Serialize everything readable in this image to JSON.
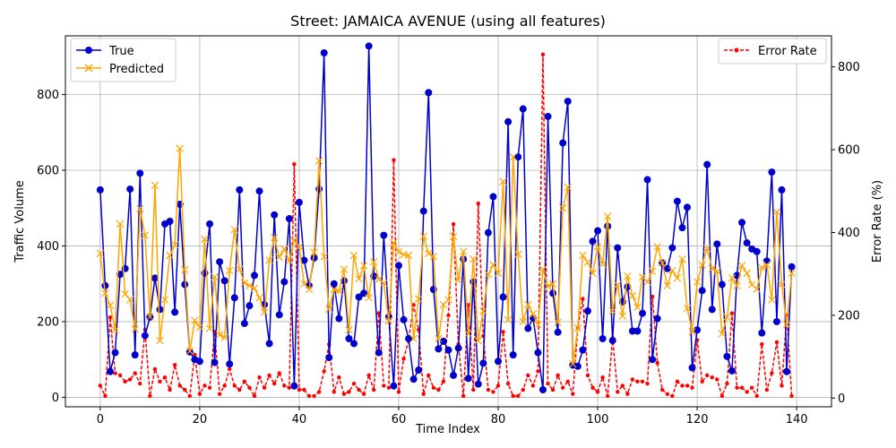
{
  "chart_data": {
    "type": "line",
    "title": "Street: JAMAICA AVENUE (using all features)",
    "xlabel": "Time Index",
    "ylabel": "Traffic Volume",
    "y2label": "Error Rate (%)",
    "xlim": [
      -7,
      147
    ],
    "ylim": [
      -25,
      955
    ],
    "y2lim": [
      -21,
      875
    ],
    "xticks": [
      "0",
      "20",
      "40",
      "60",
      "80",
      "100",
      "120",
      "140"
    ],
    "yticks": [
      "0",
      "200",
      "400",
      "600",
      "800"
    ],
    "y2ticks": [
      "0",
      "200",
      "400",
      "600",
      "800"
    ],
    "grid": true,
    "legend_left": "upper-left",
    "legend_right": "upper-right",
    "colors": {
      "true": "#0000cc",
      "predicted": "#ffa500",
      "error": "#ff0000"
    },
    "x": [
      0,
      1,
      2,
      3,
      4,
      5,
      6,
      7,
      8,
      9,
      10,
      11,
      12,
      13,
      14,
      15,
      16,
      17,
      18,
      19,
      20,
      21,
      22,
      23,
      24,
      25,
      26,
      27,
      28,
      29,
      30,
      31,
      32,
      33,
      34,
      35,
      36,
      37,
      38,
      39,
      40,
      41,
      42,
      43,
      44,
      45,
      46,
      47,
      48,
      49,
      50,
      51,
      52,
      53,
      54,
      55,
      56,
      57,
      58,
      59,
      60,
      61,
      62,
      63,
      64,
      65,
      66,
      67,
      68,
      69,
      70,
      71,
      72,
      73,
      74,
      75,
      76,
      77,
      78,
      79,
      80,
      81,
      82,
      83,
      84,
      85,
      86,
      87,
      88,
      89,
      90,
      91,
      92,
      93,
      94,
      95,
      96,
      97,
      98,
      99,
      100,
      101,
      102,
      103,
      104,
      105,
      106,
      107,
      108,
      109,
      110,
      111,
      112,
      113,
      114,
      115,
      116,
      117,
      118,
      119,
      120,
      121,
      122,
      123,
      124,
      125,
      126,
      127,
      128,
      129,
      130,
      131,
      132,
      133,
      134,
      135,
      136,
      137,
      138,
      139
    ],
    "series": [
      {
        "name": "True",
        "key": "true",
        "axis": "left",
        "marker": "circle",
        "values": [
          548,
          295,
          68,
          118,
          325,
          340,
          550,
          112,
          592,
          163,
          212,
          315,
          232,
          458,
          465,
          225,
          510,
          298,
          120,
          100,
          95,
          328,
          458,
          92,
          358,
          308,
          88,
          263,
          548,
          195,
          242,
          322,
          545,
          245,
          142,
          482,
          218,
          305,
          472,
          30,
          515,
          362,
          295,
          368,
          550,
          910,
          105,
          300,
          208,
          308,
          155,
          142,
          265,
          275,
          928,
          320,
          118,
          428,
          212,
          30,
          348,
          205,
          155,
          48,
          72,
          492,
          805,
          285,
          128,
          148,
          125,
          58,
          130,
          365,
          50,
          305,
          35,
          90,
          435,
          530,
          95,
          265,
          728,
          112,
          635,
          762,
          182,
          210,
          118,
          20,
          742,
          275,
          172,
          672,
          782,
          85,
          82,
          125,
          228,
          412,
          440,
          155,
          452,
          150,
          395,
          252,
          292,
          175,
          175,
          222,
          575,
          100,
          208,
          355,
          340,
          395,
          518,
          448,
          502,
          78,
          178,
          282,
          615,
          232,
          405,
          298,
          108,
          70,
          322,
          462,
          408,
          392,
          385,
          170,
          360,
          595,
          200,
          548,
          68,
          345
        ]
      },
      {
        "name": "Predicted",
        "key": "predicted",
        "axis": "left",
        "marker": "x",
        "values": [
          380,
          275,
          243,
          178,
          458,
          273,
          258,
          180,
          498,
          428,
          213,
          560,
          150,
          258,
          375,
          403,
          657,
          337,
          122,
          203,
          185,
          418,
          182,
          318,
          165,
          158,
          335,
          443,
          338,
          302,
          295,
          288,
          263,
          225,
          362,
          422,
          370,
          392,
          360,
          415,
          398,
          300,
          285,
          383,
          625,
          372,
          233,
          285,
          280,
          338,
          178,
          375,
          313,
          348,
          263,
          358,
          312,
          302,
          202,
          408,
          385,
          377,
          375,
          155,
          260,
          425,
          380,
          372,
          155,
          245,
          258,
          425,
          310,
          385,
          168,
          365,
          150,
          228,
          325,
          350,
          328,
          570,
          205,
          635,
          378,
          200,
          245,
          220,
          192,
          338,
          293,
          300,
          198,
          500,
          555,
          88,
          183,
          375,
          357,
          328,
          398,
          352,
          478,
          228,
          298,
          215,
          320,
          268,
          238,
          318,
          305,
          333,
          398,
          355,
          295,
          335,
          315,
          365,
          235,
          173,
          305,
          350,
          393,
          340,
          333,
          168,
          212,
          315,
          295,
          348,
          328,
          298,
          286,
          343,
          350,
          258,
          490,
          298,
          192,
          328
        ]
      },
      {
        "name": "Error Rate",
        "key": "error",
        "axis": "right",
        "marker": "dot",
        "values": [
          30,
          5,
          195,
          60,
          55,
          40,
          45,
          60,
          35,
          165,
          5,
          70,
          40,
          50,
          20,
          80,
          30,
          20,
          5,
          105,
          10,
          30,
          25,
          160,
          10,
          30,
          70,
          30,
          20,
          40,
          25,
          5,
          50,
          25,
          55,
          35,
          60,
          30,
          25,
          565,
          20,
          20,
          5,
          5,
          15,
          65,
          130,
          15,
          50,
          10,
          15,
          35,
          20,
          10,
          55,
          20,
          205,
          30,
          25,
          575,
          15,
          95,
          140,
          225,
          165,
          10,
          55,
          25,
          20,
          40,
          200,
          420,
          130,
          5,
          225,
          20,
          470,
          150,
          20,
          15,
          30,
          160,
          35,
          5,
          5,
          20,
          55,
          30,
          65,
          830,
          35,
          20,
          55,
          25,
          40,
          10,
          170,
          240,
          55,
          25,
          15,
          50,
          5,
          145,
          15,
          30,
          10,
          45,
          40,
          40,
          35,
          245,
          85,
          20,
          10,
          5,
          40,
          30,
          30,
          25,
          140,
          40,
          55,
          50,
          45,
          5,
          35,
          205,
          25,
          25,
          15,
          25,
          5,
          130,
          20,
          60,
          135,
          30,
          200,
          5
        ]
      }
    ]
  }
}
